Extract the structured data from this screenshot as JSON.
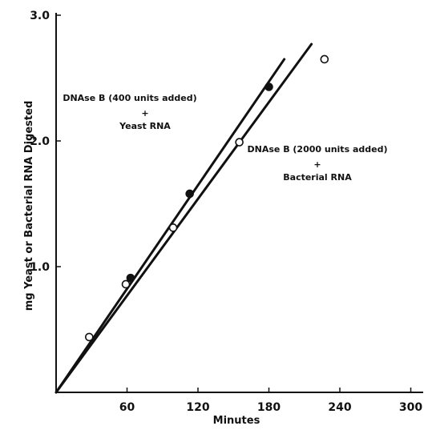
{
  "chart_data": {
    "type": "scatter",
    "xlabel": "Minutes",
    "ylabel": "mg Yeast or Bacterial RNA Digested",
    "xlim": [
      0,
      330
    ],
    "ylim": [
      0,
      3.0
    ],
    "x_ticks": [
      60,
      120,
      180,
      240,
      300
    ],
    "x_tick_labels": [
      "60",
      "120",
      "180",
      "240",
      "300"
    ],
    "y_ticks": [
      1.0,
      2.0,
      3.0
    ],
    "y_tick_labels": [
      "1.0",
      "2.0",
      "3.0"
    ],
    "series": [
      {
        "marker": "filled-circle",
        "points": [
          [
            63,
            0.91
          ],
          [
            113,
            1.58
          ],
          [
            180,
            2.43
          ]
        ],
        "fit_line": [
          [
            0,
            0
          ],
          [
            193,
            2.65
          ]
        ]
      },
      {
        "marker": "open-circle",
        "points": [
          [
            28,
            0.44
          ],
          [
            59,
            0.86
          ],
          [
            99,
            1.31
          ],
          [
            155,
            1.99
          ],
          [
            227,
            2.65
          ]
        ],
        "fit_line": [
          [
            0,
            0
          ],
          [
            216,
            2.77
          ]
        ]
      }
    ],
    "annotations": [
      {
        "line1": "DNAse B (400 units added)",
        "line2": "+",
        "line3": "Yeast RNA"
      },
      {
        "line1": "DNAse B (2000 units added)",
        "line2": "+",
        "line3": "Bacterial RNA"
      }
    ]
  }
}
